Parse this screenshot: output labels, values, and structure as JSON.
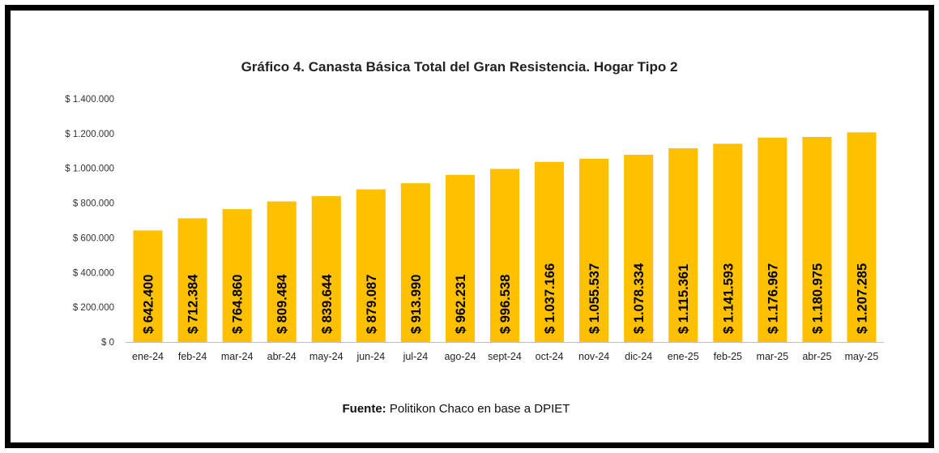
{
  "chart_data": {
    "type": "bar",
    "title": "Gráfico 4. Canasta Básica Total del Gran Resistencia. Hogar Tipo 2",
    "categories": [
      "ene-24",
      "feb-24",
      "mar-24",
      "abr-24",
      "may-24",
      "jun-24",
      "jul-24",
      "ago-24",
      "sept-24",
      "oct-24",
      "nov-24",
      "dic-24",
      "ene-25",
      "feb-25",
      "mar-25",
      "abr-25",
      "may-25"
    ],
    "values": [
      642400,
      712384,
      764860,
      809484,
      839644,
      879087,
      913990,
      962231,
      996538,
      1037166,
      1055537,
      1078334,
      1115361,
      1141593,
      1176967,
      1180975,
      1207285
    ],
    "value_labels": [
      "$ 642.400",
      "$ 712.384",
      "$ 764.860",
      "$ 809.484",
      "$ 839.644",
      "$ 879.087",
      "$ 913.990",
      "$ 962.231",
      "$ 996.538",
      "$ 1.037.166",
      "$ 1.055.537",
      "$ 1.078.334",
      "$ 1.115.361",
      "$ 1.141.593",
      "$ 1.176.967",
      "$ 1.180.975",
      "$ 1.207.285"
    ],
    "y_ticks": [
      0,
      200000,
      400000,
      600000,
      800000,
      1000000,
      1200000,
      1400000
    ],
    "y_tick_labels": [
      "$ 0",
      "$ 200.000",
      "$ 400.000",
      "$ 600.000",
      "$ 800.000",
      "$ 1.000.000",
      "$ 1.200.000",
      "$ 1.400.000"
    ],
    "ylim": [
      0,
      1400000
    ],
    "xlabel": "",
    "ylabel": "",
    "grid": false,
    "bar_color": "#FFC000",
    "source_label": "Fuente:",
    "source_text": " Politikon Chaco en base a DPIET"
  }
}
